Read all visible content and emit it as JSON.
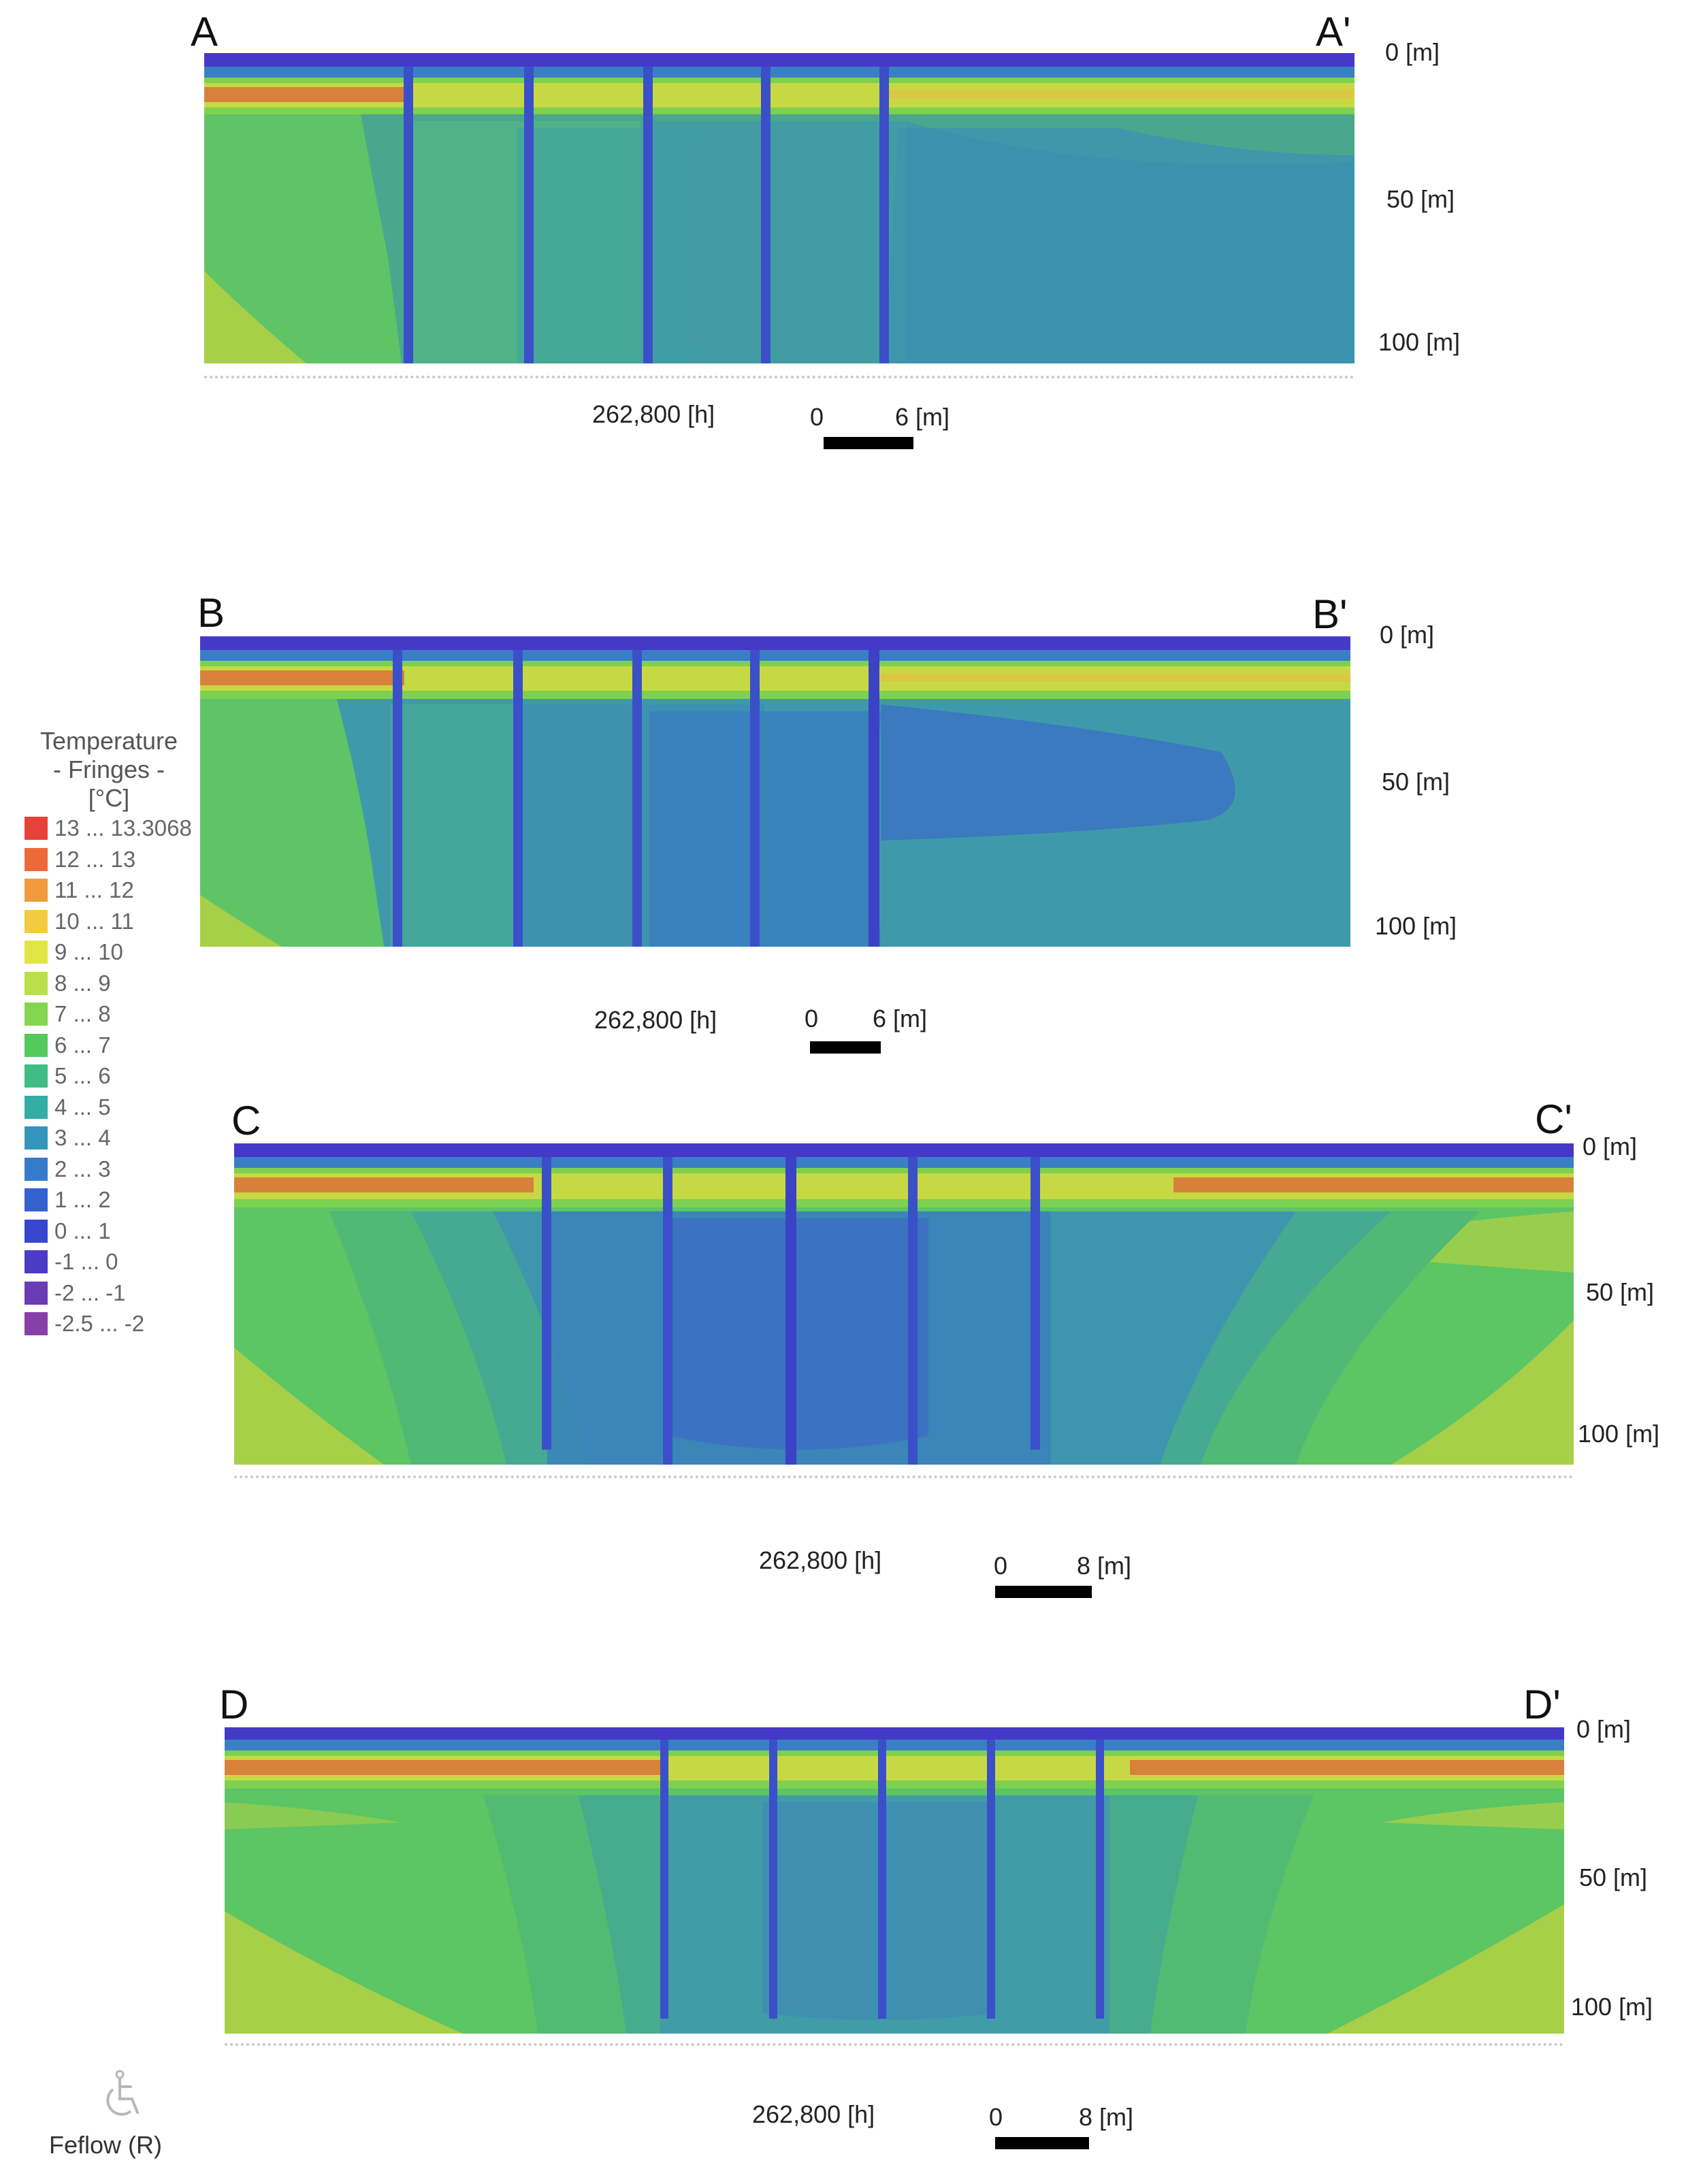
{
  "sections": [
    {
      "start_label": "A",
      "end_label": "A'",
      "depth_labels": [
        "0 [m]",
        "50 [m]",
        "100 [m]"
      ],
      "time_label": "262,800 [h]",
      "scale_start": "0",
      "scale_end": "6 [m]"
    },
    {
      "start_label": "B",
      "end_label": "B'",
      "depth_labels": [
        "0 [m]",
        "50 [m]",
        "100 [m]"
      ],
      "time_label": "262,800 [h]",
      "scale_start": "0",
      "scale_end": "6 [m]"
    },
    {
      "start_label": "C",
      "end_label": "C'",
      "depth_labels": [
        "0 [m]",
        "50 [m]",
        "100 [m]"
      ],
      "time_label": "262,800 [h]",
      "scale_start": "0",
      "scale_end": "8 [m]"
    },
    {
      "start_label": "D",
      "end_label": "D'",
      "depth_labels": [
        "0 [m]",
        "50 [m]",
        "100 [m]"
      ],
      "time_label": "262,800 [h]",
      "scale_start": "0",
      "scale_end": "8  [m]"
    }
  ],
  "legend": {
    "title_line1": "Temperature",
    "title_line2": "- Fringes -",
    "title_line3": "[°C]",
    "items": [
      {
        "label": "13 ... 13.3068",
        "color": "#e8413a"
      },
      {
        "label": "12 ... 13",
        "color": "#ec6a3a"
      },
      {
        "label": "11 ... 12",
        "color": "#f19b3c"
      },
      {
        "label": "10 ... 11",
        "color": "#f4ca3e"
      },
      {
        "label": "9 ... 10",
        "color": "#e3e445"
      },
      {
        "label": "8 ... 9",
        "color": "#b9e04a"
      },
      {
        "label": "7 ... 8",
        "color": "#84d54f"
      },
      {
        "label": "6 ... 7",
        "color": "#54c95c"
      },
      {
        "label": "5 ... 6",
        "color": "#3fbd85"
      },
      {
        "label": "4 ... 5",
        "color": "#35aca6"
      },
      {
        "label": "3 ... 4",
        "color": "#3596bd"
      },
      {
        "label": "2 ... 3",
        "color": "#347cc9"
      },
      {
        "label": "1 ... 2",
        "color": "#3461d0"
      },
      {
        "label": "0 ... 1",
        "color": "#3646cf"
      },
      {
        "label": "-1 ... 0",
        "color": "#4c3bc4"
      },
      {
        "label": "-2 ... -1",
        "color": "#6a3bb5"
      },
      {
        "label": "-2.5 ... -2",
        "color": "#8740a7"
      }
    ]
  },
  "brand": {
    "label": "Feflow (R)",
    "icon": "feflow-logo-icon"
  },
  "colors": {
    "surface_band": "#4639c8",
    "warm_band": "#d9793a",
    "ground_green": "#5cc564",
    "ground_olive": "#a9cf45",
    "cold_zone": "#3a8fb4",
    "cold_core": "#3b5ec4",
    "borehole": "#3a47c8"
  }
}
